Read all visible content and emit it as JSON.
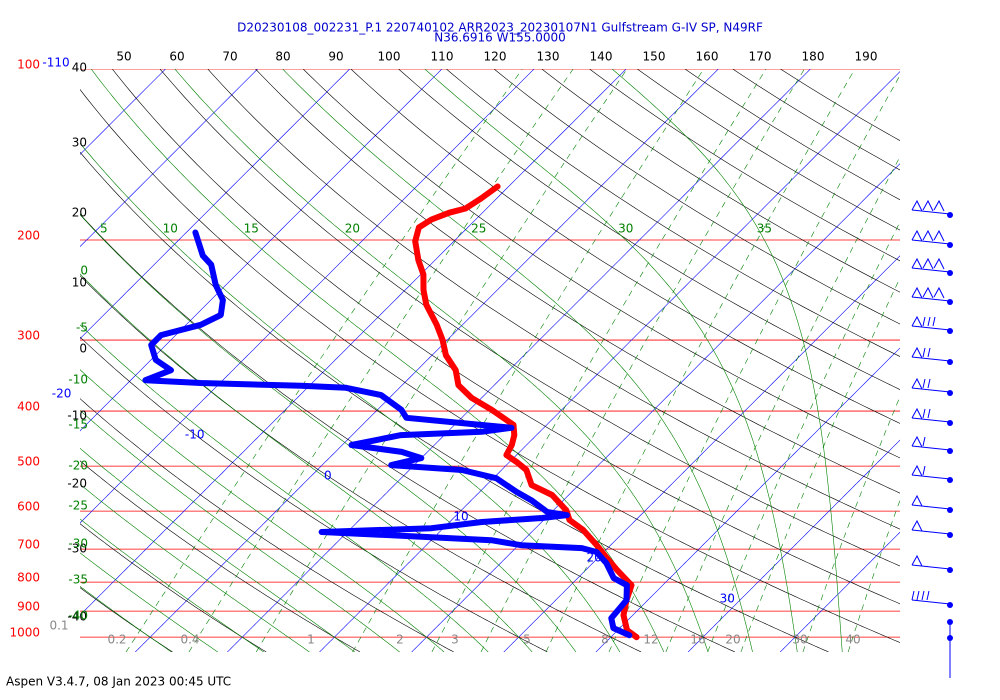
{
  "title": "D20230108_002231_P.1 220740102 ARR2023_20230107N1 Gulfstream G-IV SP, N49RF",
  "subtitle": "N36.6916 W155.0000",
  "footer": "Aspen V3.4.7, 08 Jan 2023  00:45 UTC",
  "chart_data": {
    "type": "skew-t",
    "log_y": true,
    "ylim": [
      1062,
      100
    ],
    "xlim": [
      -46,
      43
    ],
    "yticks": [
      100,
      200,
      300,
      400,
      500,
      600,
      700,
      800,
      900,
      1000
    ],
    "ytick_color": "#ff0000",
    "isotherms": [
      -110,
      -100,
      -90,
      -80,
      -70,
      -60,
      -50,
      -40,
      -30,
      -20,
      -10,
      0,
      10,
      20,
      30
    ],
    "isotherm_color": "#0000ff",
    "dry_adiabats_top": [
      50,
      60,
      70,
      80,
      90,
      100,
      110,
      120,
      130,
      140,
      150,
      160,
      170,
      180,
      190
    ],
    "dry_adiabats_left": [
      40,
      30,
      20,
      10,
      0,
      -10,
      -20,
      -30,
      -40
    ],
    "dry_adiabat_color": "#000000",
    "moist_adiabats_top": [
      5,
      10,
      15,
      20,
      25,
      30,
      35
    ],
    "moist_adiabats_left": [
      0,
      -5,
      -10,
      -15,
      -20,
      -25,
      -30,
      -35,
      -40
    ],
    "moist_adiabat_color": "#008000",
    "mixing_ratios": [
      0.1,
      0.2,
      0.4,
      1,
      2,
      3,
      5,
      8,
      12,
      16,
      20,
      30,
      40
    ],
    "mixing_ratio_color": "#888888",
    "series": [
      {
        "color": "#ff0000",
        "pressure": [
          161,
          169,
          176,
          179,
          184,
          190,
          201,
          217,
          230,
          245,
          260,
          282,
          300,
          319,
          339,
          360,
          379,
          398,
          423,
          441,
          459,
          478,
          492,
          508,
          540,
          562,
          598,
          622,
          648,
          689,
          726,
          762,
          810,
          861,
          915,
          972,
          1000
        ],
        "values": [
          -51.2,
          -51.7,
          -52.3,
          -53.6,
          -54.8,
          -55.3,
          -54.2,
          -51.8,
          -49.7,
          -48.0,
          -46.1,
          -42.8,
          -40.5,
          -38.5,
          -35.8,
          -33.9,
          -31.1,
          -27.6,
          -23.6,
          -22.4,
          -21.6,
          -21.1,
          -19.2,
          -17.3,
          -15.1,
          -11.8,
          -8.6,
          -7.2,
          -4.6,
          -1.5,
          1.0,
          3.4,
          6.6,
          7.7,
          9.0,
          11.0,
          12.8
        ]
      },
      {
        "color": "#0000ff",
        "pressure": [
          194,
          213,
          221,
          240,
          255,
          271,
          282,
          294,
          306,
          325,
          339,
          353,
          357,
          361,
          364,
          375,
          398,
          411,
          428,
          435,
          441,
          459,
          472,
          484,
          498,
          508,
          525,
          555,
          574,
          602,
          610,
          617,
          627,
          643,
          653,
          667,
          675,
          689,
          697,
          708,
          741,
          787,
          810,
          861,
          926,
          964,
          992
        ],
        "values": [
          -79.0,
          -75.7,
          -73.8,
          -71.1,
          -68.7,
          -67.3,
          -68.4,
          -71.6,
          -71.6,
          -69.5,
          -66.7,
          -68.4,
          -62.1,
          -50.9,
          -45.8,
          -41.2,
          -37.4,
          -36.0,
          -23.5,
          -26.3,
          -34.7,
          -39.0,
          -32.8,
          -30.0,
          -32.5,
          -24.3,
          -19.7,
          -16.0,
          -13.5,
          -10.5,
          -8.0,
          -10.4,
          -16.5,
          -21.3,
          -32.8,
          -20.3,
          -13.5,
          -9.7,
          -2.8,
          -0.8,
          1.5,
          3.9,
          6.1,
          7.7,
          8.0,
          9.3,
          11.8
        ]
      }
    ]
  }
}
